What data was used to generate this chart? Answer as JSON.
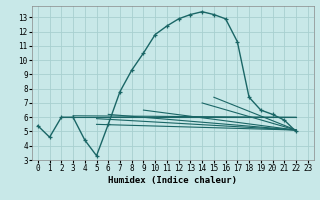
{
  "xlabel": "Humidex (Indice chaleur)",
  "bg_color": "#c8e8e8",
  "grid_color": "#a8d0d0",
  "line_color": "#1a6666",
  "xlim": [
    -0.5,
    23.5
  ],
  "ylim": [
    3.0,
    13.8
  ],
  "xticks": [
    0,
    1,
    2,
    3,
    4,
    5,
    6,
    7,
    8,
    9,
    10,
    11,
    12,
    13,
    14,
    15,
    16,
    17,
    18,
    19,
    20,
    21,
    22,
    23
  ],
  "yticks": [
    3,
    4,
    5,
    6,
    7,
    8,
    9,
    10,
    11,
    12,
    13
  ],
  "main_x": [
    0,
    1,
    2,
    3,
    4,
    5,
    6,
    7,
    8,
    9,
    10,
    11,
    12,
    13,
    14,
    15,
    16,
    17,
    18,
    19,
    20,
    21,
    22
  ],
  "main_y": [
    5.4,
    4.6,
    6.0,
    6.0,
    4.4,
    3.3,
    5.5,
    7.8,
    9.3,
    10.5,
    11.8,
    12.4,
    12.9,
    13.2,
    13.4,
    13.2,
    12.9,
    11.3,
    7.4,
    6.5,
    6.2,
    5.8,
    5.0
  ],
  "band_lines": [
    {
      "x": [
        2,
        22
      ],
      "y": [
        6.0,
        6.0
      ]
    },
    {
      "x": [
        3,
        22
      ],
      "y": [
        6.1,
        6.0
      ]
    },
    {
      "x": [
        5,
        22
      ],
      "y": [
        5.5,
        5.1
      ]
    },
    {
      "x": [
        5,
        22
      ],
      "y": [
        5.9,
        5.1
      ]
    },
    {
      "x": [
        6,
        22
      ],
      "y": [
        6.2,
        5.1
      ]
    },
    {
      "x": [
        9,
        22
      ],
      "y": [
        6.5,
        5.1
      ]
    },
    {
      "x": [
        14,
        22
      ],
      "y": [
        7.0,
        5.1
      ]
    },
    {
      "x": [
        15,
        22
      ],
      "y": [
        7.4,
        5.1
      ]
    }
  ]
}
